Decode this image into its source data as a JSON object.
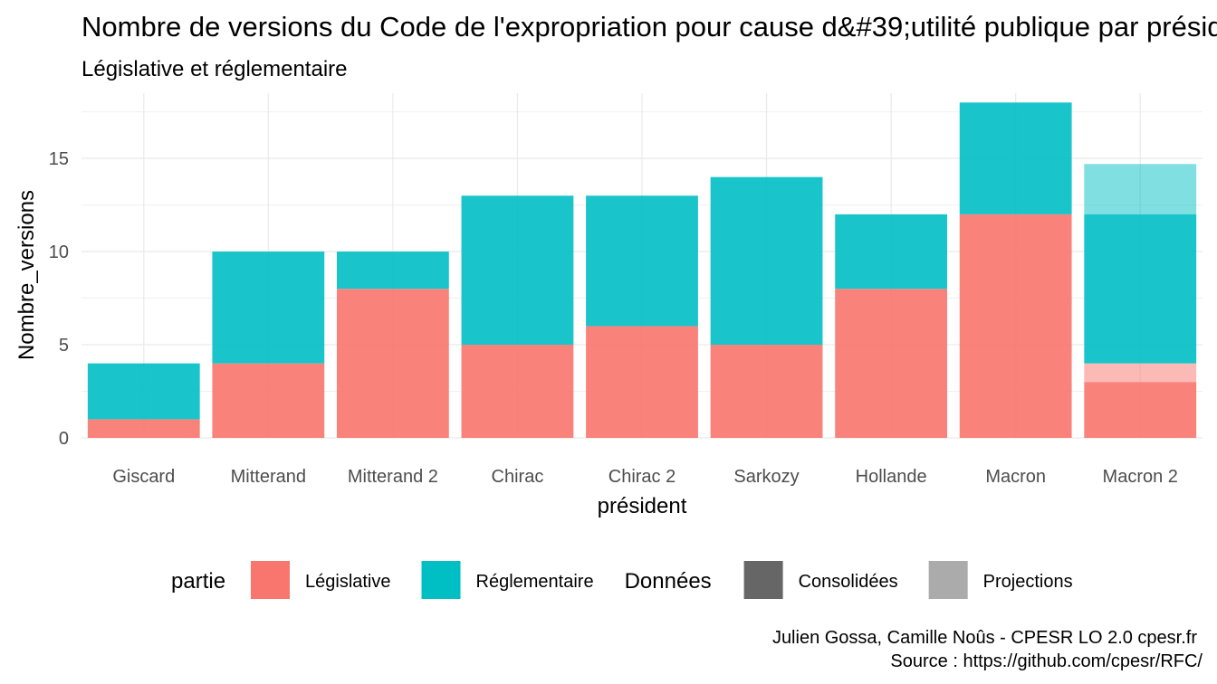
{
  "chart_data": {
    "type": "bar",
    "title": "Nombre de versions du Code de l'expropriation pour cause d&#39;utilité publique par président",
    "subtitle": "Législative et réglementaire",
    "xlabel": "président",
    "ylabel": "Nombre_versions",
    "categories": [
      "Giscard",
      "Mitterand",
      "Mitterand 2",
      "Chirac",
      "Chirac 2",
      "Sarkozy",
      "Hollande",
      "Macron",
      "Macron 2"
    ],
    "ylim": [
      0,
      18.5
    ],
    "yticks": [
      0,
      5,
      10,
      15
    ],
    "grid": true,
    "series": [
      {
        "name": "Législative",
        "donnees": "Consolidées",
        "color": "#F8766D",
        "values": [
          1,
          4,
          8,
          5,
          6,
          5,
          8,
          12,
          3
        ]
      },
      {
        "name": "Législative",
        "donnees": "Projections",
        "color": "#F8766D",
        "values": [
          0,
          0,
          0,
          0,
          0,
          0,
          0,
          0,
          1
        ]
      },
      {
        "name": "Réglementaire",
        "donnees": "Consolidées",
        "color": "#00BFC4",
        "values": [
          3,
          6,
          2,
          8,
          7,
          9,
          4,
          6,
          8
        ]
      },
      {
        "name": "Réglementaire",
        "donnees": "Projections",
        "color": "#00BFC4",
        "values": [
          0,
          0,
          0,
          0,
          0,
          0,
          0,
          0,
          2.7
        ]
      }
    ],
    "legend": {
      "position": "bottom",
      "groups": [
        {
          "title": "partie",
          "items": [
            {
              "label": "Législative",
              "color": "#F8766D"
            },
            {
              "label": "Réglementaire",
              "color": "#00BFC4"
            }
          ]
        },
        {
          "title": "Données",
          "items": [
            {
              "label": "Consolidées",
              "color": "#666666"
            },
            {
              "label": "Projections",
              "color": "#ABABAB"
            }
          ]
        }
      ]
    },
    "caption": [
      "Julien Gossa, Camille Noûs - CPESR LO 2.0 cpesr.fr",
      "Source : https://github.com/cpesr/RFC/"
    ]
  }
}
